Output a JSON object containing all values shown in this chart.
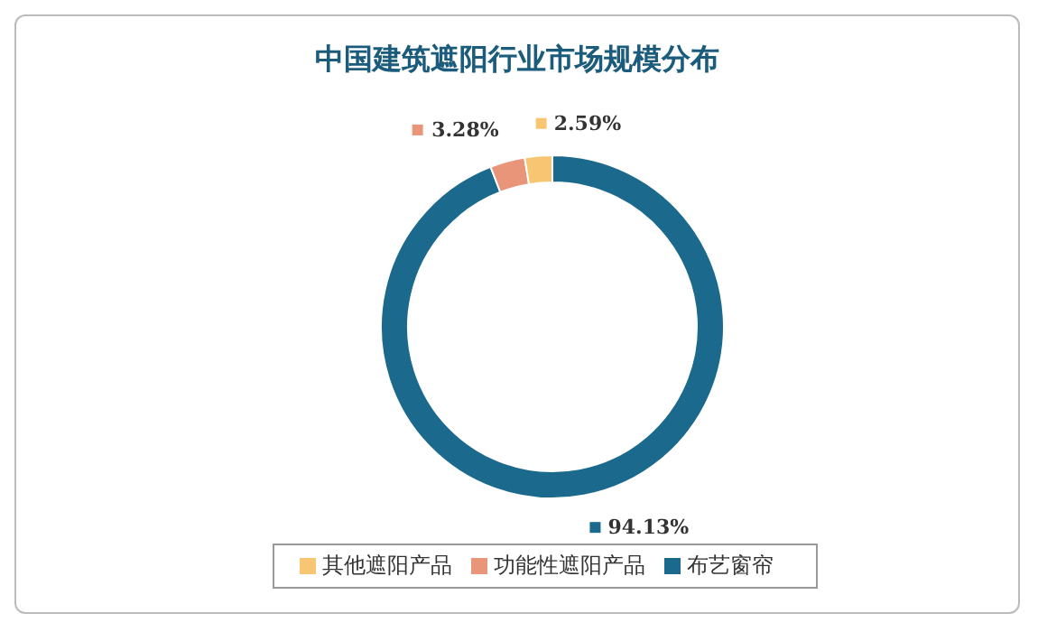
{
  "chart_data": {
    "type": "donut",
    "title": "中国建筑遮阳行业市场规模分布",
    "categories": [
      "布艺窗帘",
      "功能性遮阳产品",
      "其他遮阳产品"
    ],
    "values": [
      94.13,
      3.28,
      2.59
    ],
    "colors": [
      "#1b6a8d",
      "#e8957a",
      "#f8c572"
    ],
    "value_labels": [
      "94.13%",
      "3.28%",
      "2.59%"
    ],
    "legend": "bottom"
  }
}
